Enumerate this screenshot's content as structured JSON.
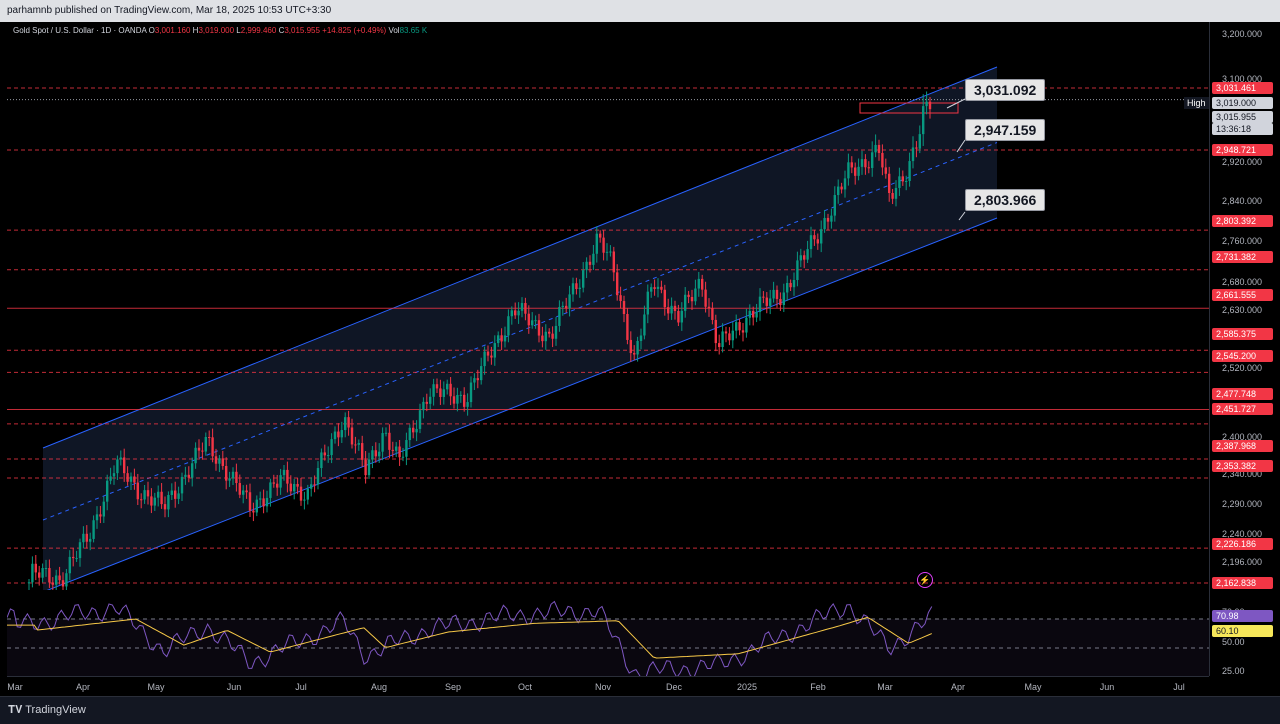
{
  "header": {
    "publisher": "parhamnb published on TradingView.com, Mar 18, 2025 10:53 UTC+3:30"
  },
  "legend": {
    "symbol": "Gold Spot / U.S. Dollar · 1D · OANDA",
    "open_label": "O",
    "open": "3,001.160",
    "high_label": "H",
    "high": "3,019.000",
    "low_label": "L",
    "low": "2,999.460",
    "close_label": "C",
    "close": "3,015.955",
    "change": "+14.825 (+0.49%)",
    "vol_label": "Vol",
    "vol": "83.65 K"
  },
  "callouts": {
    "top": "3,031.092",
    "mid": "2,947.159",
    "low": "2,803.966"
  },
  "high_tag": "High",
  "price_axis": {
    "ticks": [
      "3,200.000",
      "3,100.000",
      "2,920.000",
      "2,840.000",
      "2,760.000",
      "2,680.000",
      "2,630.000",
      "2,520.000",
      "2,400.000",
      "2,340.000",
      "2,290.000",
      "2,240.000",
      "2,196.000"
    ],
    "level_labels": [
      "3,031.461",
      "2,948.721",
      "2,803.392",
      "2,731.382",
      "2,661.555",
      "2,585.375",
      "2,545.200",
      "2,477.748",
      "2,451.727",
      "2,387.968",
      "2,353.382",
      "2,226.186",
      "2,162.838"
    ],
    "high_label": "3,019.000",
    "last_price": "3,015.955",
    "countdown": "13:36:18",
    "rsi_ticks": [
      "70.00",
      "50.00",
      "25.00"
    ],
    "rsi_value": "70.98",
    "rsi_ma_value": "60.10"
  },
  "time_axis": {
    "months": [
      "Mar",
      "Apr",
      "May",
      "Jun",
      "Jul",
      "Aug",
      "Sep",
      "Oct",
      "Nov",
      "Dec",
      "2025",
      "Feb",
      "Mar",
      "Apr",
      "May",
      "Jun",
      "Jul"
    ]
  },
  "footer": {
    "brand": "TradingView"
  },
  "colors": {
    "up": "#089981",
    "down": "#f23645",
    "channel": "#2962ff",
    "rsi": "#7e57c2",
    "rsi_ma": "#f7c948",
    "level": "#f23645"
  },
  "chart_data": {
    "type": "candlestick",
    "instrument": "Gold Spot / U.S. Dollar",
    "timeframe": "1D",
    "horizontal_levels": [
      3031.461,
      2948.721,
      2803.392,
      2731.382,
      2661.555,
      2585.375,
      2545.2,
      2477.748,
      2451.727,
      2387.968,
      2353.382,
      2226.186,
      2162.838
    ],
    "close_path": [
      [
        "2024-03-01",
        2085
      ],
      [
        "2024-03-08",
        2180
      ],
      [
        "2024-03-20",
        2170
      ],
      [
        "2024-04-01",
        2250
      ],
      [
        "2024-04-12",
        2380
      ],
      [
        "2024-04-22",
        2330
      ],
      [
        "2024-05-02",
        2300
      ],
      [
        "2024-05-20",
        2420
      ],
      [
        "2024-06-07",
        2300
      ],
      [
        "2024-06-20",
        2350
      ],
      [
        "2024-07-01",
        2325
      ],
      [
        "2024-07-16",
        2465
      ],
      [
        "2024-07-25",
        2365
      ],
      [
        "2024-08-02",
        2440
      ],
      [
        "2024-08-08",
        2380
      ],
      [
        "2024-08-20",
        2510
      ],
      [
        "2024-09-05",
        2500
      ],
      [
        "2024-09-25",
        2660
      ],
      [
        "2024-10-10",
        2610
      ],
      [
        "2024-10-30",
        2785
      ],
      [
        "2024-11-05",
        2740
      ],
      [
        "2024-11-14",
        2565
      ],
      [
        "2024-11-22",
        2715
      ],
      [
        "2024-12-02",
        2640
      ],
      [
        "2024-12-12",
        2715
      ],
      [
        "2024-12-19",
        2590
      ],
      [
        "2025-01-02",
        2655
      ],
      [
        "2025-01-15",
        2690
      ],
      [
        "2025-01-30",
        2800
      ],
      [
        "2025-02-11",
        2905
      ],
      [
        "2025-02-24",
        2950
      ],
      [
        "2025-02-28",
        2858
      ],
      [
        "2025-03-07",
        2910
      ],
      [
        "2025-03-14",
        2985
      ],
      [
        "2025-03-18",
        3015.955
      ]
    ],
    "rsi_path": [
      [
        "2024-03-01",
        65
      ],
      [
        "2024-04-12",
        78
      ],
      [
        "2024-05-02",
        48
      ],
      [
        "2024-05-20",
        65
      ],
      [
        "2024-06-07",
        40
      ],
      [
        "2024-07-16",
        68
      ],
      [
        "2024-07-25",
        45
      ],
      [
        "2024-08-20",
        63
      ],
      [
        "2024-09-25",
        73
      ],
      [
        "2024-10-30",
        76
      ],
      [
        "2024-11-14",
        33
      ],
      [
        "2024-12-19",
        38
      ],
      [
        "2025-01-30",
        70
      ],
      [
        "2025-02-11",
        80
      ],
      [
        "2025-02-28",
        50
      ],
      [
        "2025-03-18",
        70.98
      ]
    ],
    "rsi_ma_value": 60.1,
    "rsi_levels": [
      70,
      50,
      25
    ]
  }
}
